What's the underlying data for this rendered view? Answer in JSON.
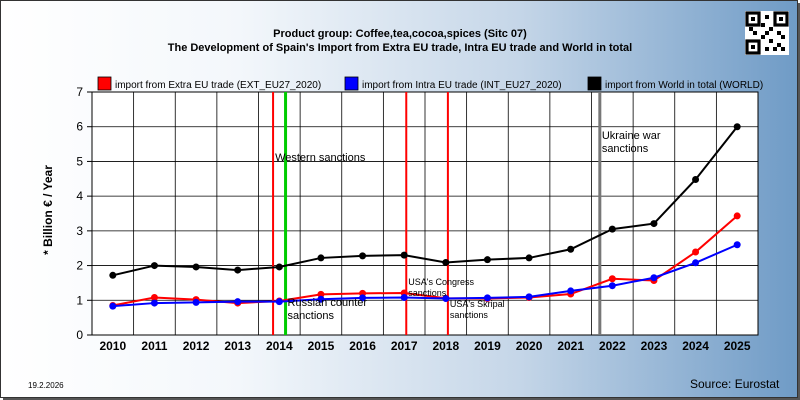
{
  "header": {
    "title_line1": "Product group: Coffee,tea,cocoa,spices (Sitc 07)",
    "title_line2": "The Development of Spain's Import from Extra EU trade, Intra EU trade and World in total"
  },
  "footer": {
    "date": "19.2.2026",
    "source": "Source: Eurostat"
  },
  "chart_data": {
    "type": "line",
    "ylabel": "* Billion € / Year",
    "xlabel": "",
    "ylim": [
      0,
      7
    ],
    "yticks": [
      "0",
      "1",
      "2",
      "3",
      "4",
      "5",
      "6",
      "7"
    ],
    "categories": [
      "2010",
      "2011",
      "2012",
      "2013",
      "2014",
      "2015",
      "2016",
      "2017",
      "2018",
      "2019",
      "2020",
      "2021",
      "2022",
      "2023",
      "2024",
      "2025"
    ],
    "grid": true,
    "legend_position": "top",
    "series": [
      {
        "name": "import from Extra EU trade (EXT_EU27_2020)",
        "color": "#ff0000",
        "values": [
          0.85,
          1.08,
          1.02,
          0.92,
          0.98,
          1.17,
          1.2,
          1.21,
          1.06,
          1.05,
          1.08,
          1.18,
          1.62,
          1.57,
          2.39,
          3.43
        ]
      },
      {
        "name": "import from Intra EU trade (INT_EU27_2020)",
        "color": "#0000ff",
        "values": [
          0.83,
          0.92,
          0.94,
          0.96,
          0.96,
          1.03,
          1.07,
          1.08,
          1.05,
          1.07,
          1.1,
          1.27,
          1.42,
          1.65,
          2.08,
          2.6
        ]
      },
      {
        "name": "import from World in total (WORLD)",
        "color": "#000000",
        "values": [
          1.72,
          2.0,
          1.96,
          1.87,
          1.96,
          2.22,
          2.28,
          2.3,
          2.09,
          2.17,
          2.22,
          2.47,
          3.05,
          3.21,
          4.48,
          6.0
        ]
      }
    ],
    "sanctions": [
      {
        "year": 2013.85,
        "color": "#ff0000",
        "label": "Western sanctions"
      },
      {
        "year": 2014.15,
        "color": "#00cc00",
        "label": "Russian counter sanctions"
      },
      {
        "year": 2017.05,
        "color": "#ff0000",
        "label": "USA's Congress sanctions"
      },
      {
        "year": 2018.05,
        "color": "#ff0000",
        "label": "USA's Skripal sanctions"
      },
      {
        "year": 2021.7,
        "color": "#777777",
        "label": "Ukraine war sanctions"
      }
    ]
  }
}
